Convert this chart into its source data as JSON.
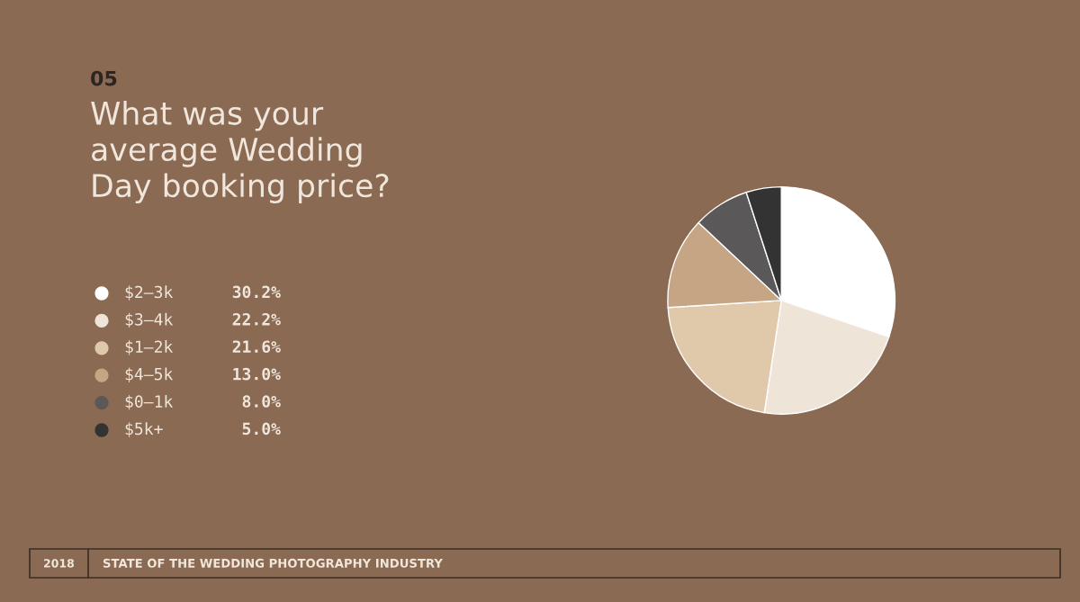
{
  "chart_data": {
    "type": "pie",
    "title": "What was your average Wedding Day booking price?",
    "categories": [
      "$2–3k",
      "$3–4k",
      "$1–2k",
      "$4–5k",
      "$0–1k",
      "$5k+"
    ],
    "values": [
      30.2,
      22.2,
      21.6,
      13.0,
      8.0,
      5.0
    ],
    "value_labels": [
      "30.2%",
      "22.2%",
      "21.6%",
      "13.0%",
      "8.0%",
      "5.0%"
    ],
    "colors": [
      "#ffffff",
      "#efe4d8",
      "#e0c9ab",
      "#c6a584",
      "#5a5858",
      "#333333"
    ],
    "legend": "left",
    "annotations": [
      "05",
      "2018",
      "STATE OF THE WEDDING PHOTOGRAPHY INDUSTRY"
    ]
  }
}
